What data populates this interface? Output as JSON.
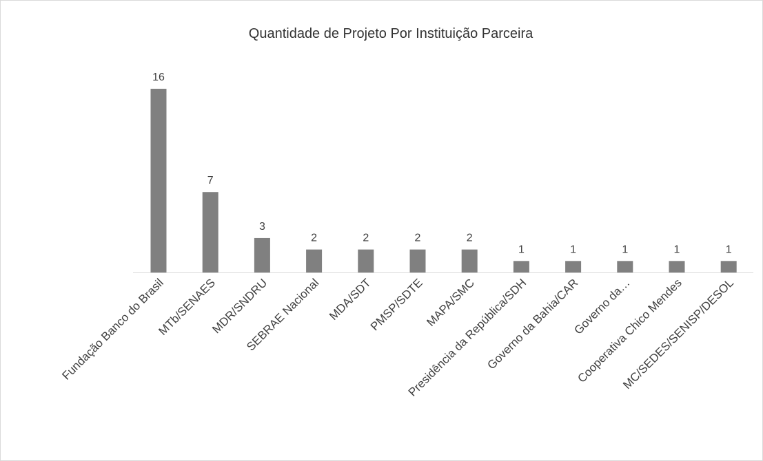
{
  "chart_data": {
    "type": "bar",
    "title": "Quantidade de Projeto Por Instituição Parceira",
    "categories": [
      "Fundação Banco do Brasil",
      "MTb/SENAES",
      "MDR/SNDRU",
      "SEBRAE Nacional",
      "MDA/SDT",
      "PMSP/SDTE",
      "MAPA/SMC",
      "Presidência da República/SDH",
      "Governo da Bahia/CAR",
      "Governo da…",
      "Cooperativa Chico Mendes",
      "MC/SEDES/SENISP/DESOL"
    ],
    "values": [
      16,
      7,
      3,
      2,
      2,
      2,
      2,
      1,
      1,
      1,
      1,
      1
    ],
    "color": "#808080"
  }
}
